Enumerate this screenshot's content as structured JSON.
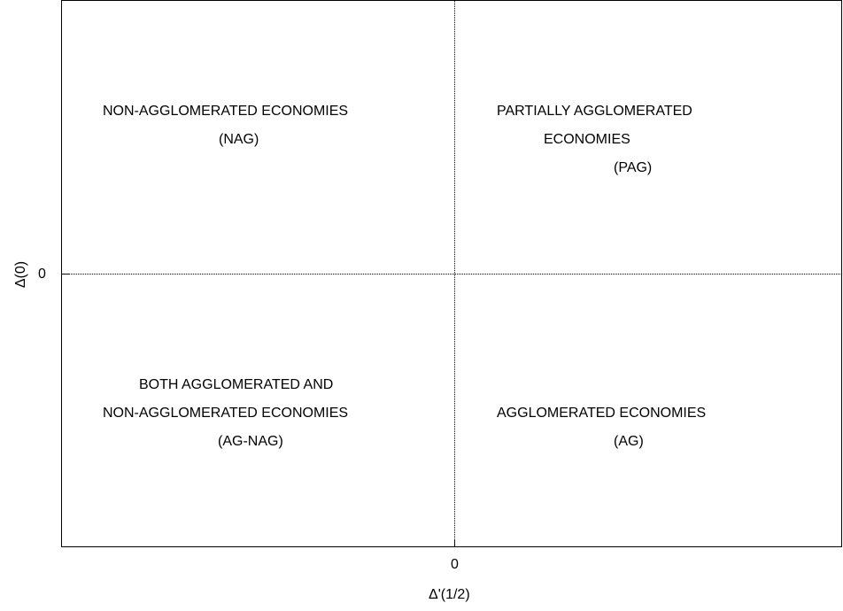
{
  "axes": {
    "x_label": "Δ'(1/2)",
    "y_label": "Δ(0)",
    "x_tick": "0",
    "y_tick": "0"
  },
  "regions": {
    "nag": {
      "line1": "NON-AGGLOMERATED ECONOMIES",
      "line2": "(NAG)"
    },
    "pag": {
      "line1": "PARTIALLY AGGLOMERATED",
      "line2": "ECONOMIES",
      "line3": "(PAG)"
    },
    "ag_nag": {
      "line1": "BOTH AGGLOMERATED AND",
      "line2": "NON-AGGLOMERATED ECONOMIES",
      "line3": "(AG-NAG)"
    },
    "ag": {
      "line1": "AGGLOMERATED ECONOMIES",
      "line2": "(AG)"
    }
  }
}
